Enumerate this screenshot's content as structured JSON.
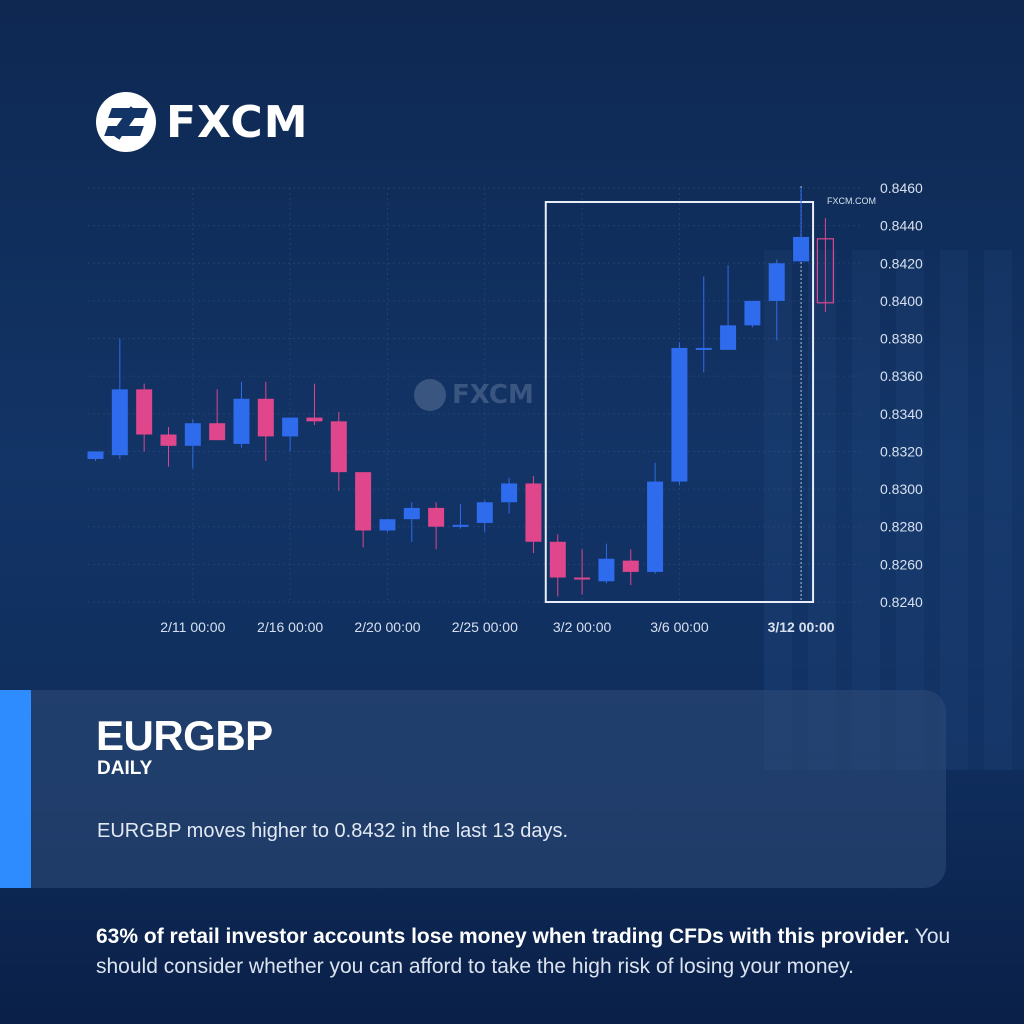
{
  "brand": {
    "logo_text": "FXCM",
    "watermark_text": "FXCM",
    "source_label": "FXCM.COM"
  },
  "card": {
    "symbol": "EURGBP",
    "period": "DAILY",
    "headline": "EURGBP moves higher to 0.8432 in the last 13 days."
  },
  "disclaimer": {
    "bold": "63% of retail investor accounts lose money when trading CFDs with this provider.",
    "normal": " You should consider whether you can afford to take the high risk of losing your money."
  },
  "colors": {
    "up": "#2f6bed",
    "down": "#e0468b",
    "accent": "#2e8cff",
    "grid": "#3a5583",
    "axis_text": "#d7e0ee"
  },
  "chart_data": {
    "type": "candlestick",
    "ylim": [
      0.824,
      0.846
    ],
    "ytick_step": 0.002,
    "ytick_labels": [
      "0.8460",
      "0.8440",
      "0.8420",
      "0.8400",
      "0.8380",
      "0.8360",
      "0.8340",
      "0.8320",
      "0.8300",
      "0.8280",
      "0.8260",
      "0.8240"
    ],
    "xtick_labels": [
      {
        "label": "2/11 00:00",
        "index": 4,
        "bold": false
      },
      {
        "label": "2/16 00:00",
        "index": 8,
        "bold": false
      },
      {
        "label": "2/20 00:00",
        "index": 12,
        "bold": false
      },
      {
        "label": "2/25 00:00",
        "index": 16,
        "bold": false
      },
      {
        "label": "3/2 00:00",
        "index": 20,
        "bold": false
      },
      {
        "label": "3/6 00:00",
        "index": 24,
        "bold": false
      },
      {
        "label": "3/12 00:00",
        "index": 29,
        "bold": true
      }
    ],
    "highlight_range": {
      "start_index": 19,
      "end_index": 29
    },
    "current_index": 29,
    "candles": [
      {
        "o": 0.8316,
        "h": 0.832,
        "l": 0.8315,
        "c": 0.832
      },
      {
        "o": 0.8318,
        "h": 0.838,
        "l": 0.8316,
        "c": 0.8353
      },
      {
        "o": 0.8353,
        "h": 0.8356,
        "l": 0.832,
        "c": 0.8329
      },
      {
        "o": 0.8329,
        "h": 0.8333,
        "l": 0.8312,
        "c": 0.8323
      },
      {
        "o": 0.8323,
        "h": 0.8337,
        "l": 0.8311,
        "c": 0.8335
      },
      {
        "o": 0.8335,
        "h": 0.8353,
        "l": 0.8326,
        "c": 0.8326
      },
      {
        "o": 0.8324,
        "h": 0.8357,
        "l": 0.8322,
        "c": 0.8348
      },
      {
        "o": 0.8348,
        "h": 0.8357,
        "l": 0.8315,
        "c": 0.8328
      },
      {
        "o": 0.8328,
        "h": 0.8338,
        "l": 0.832,
        "c": 0.8338
      },
      {
        "o": 0.8338,
        "h": 0.8356,
        "l": 0.8334,
        "c": 0.8336
      },
      {
        "o": 0.8336,
        "h": 0.8341,
        "l": 0.8299,
        "c": 0.8309
      },
      {
        "o": 0.8309,
        "h": 0.8309,
        "l": 0.8269,
        "c": 0.8278
      },
      {
        "o": 0.8278,
        "h": 0.8284,
        "l": 0.8277,
        "c": 0.8284
      },
      {
        "o": 0.8284,
        "h": 0.8293,
        "l": 0.8272,
        "c": 0.829
      },
      {
        "o": 0.829,
        "h": 0.8293,
        "l": 0.8268,
        "c": 0.828
      },
      {
        "o": 0.828,
        "h": 0.8292,
        "l": 0.8279,
        "c": 0.8281
      },
      {
        "o": 0.8282,
        "h": 0.8294,
        "l": 0.8277,
        "c": 0.8293
      },
      {
        "o": 0.8293,
        "h": 0.8306,
        "l": 0.8287,
        "c": 0.8303
      },
      {
        "o": 0.8303,
        "h": 0.8307,
        "l": 0.8266,
        "c": 0.8272
      },
      {
        "o": 0.8272,
        "h": 0.8276,
        "l": 0.8243,
        "c": 0.8253
      },
      {
        "o": 0.8253,
        "h": 0.8268,
        "l": 0.8244,
        "c": 0.8252
      },
      {
        "o": 0.8251,
        "h": 0.8271,
        "l": 0.825,
        "c": 0.8263
      },
      {
        "o": 0.8262,
        "h": 0.8268,
        "l": 0.8249,
        "c": 0.8256
      },
      {
        "o": 0.8256,
        "h": 0.8314,
        "l": 0.8255,
        "c": 0.8304
      },
      {
        "o": 0.8304,
        "h": 0.8378,
        "l": 0.8302,
        "c": 0.8375
      },
      {
        "o": 0.8375,
        "h": 0.8413,
        "l": 0.8362,
        "c": 0.8375
      },
      {
        "o": 0.8374,
        "h": 0.8419,
        "l": 0.8374,
        "c": 0.8387
      },
      {
        "o": 0.8387,
        "h": 0.84,
        "l": 0.8386,
        "c": 0.84
      },
      {
        "o": 0.84,
        "h": 0.8422,
        "l": 0.8379,
        "c": 0.842
      },
      {
        "o": 0.8421,
        "h": 0.846,
        "l": 0.8421,
        "c": 0.8434
      },
      {
        "o": 0.8433,
        "h": 0.8444,
        "l": 0.8394,
        "c": 0.8399
      }
    ]
  }
}
